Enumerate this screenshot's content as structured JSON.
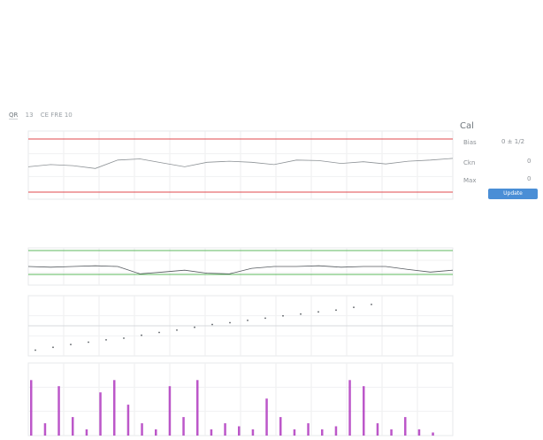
{
  "tabs": [
    {
      "label": "QR"
    },
    {
      "label": "13"
    },
    {
      "label": "CE FRE 10"
    }
  ],
  "side_panel": {
    "title": "Cal",
    "rows": [
      {
        "label": "Bias",
        "value": "0 ± 1/2"
      },
      {
        "label": "Ckn",
        "value": "0"
      },
      {
        "label": "Max",
        "value": "0"
      }
    ],
    "update_button": "Update"
  },
  "chart_data": [
    {
      "type": "line",
      "series": [
        {
          "values": [
            0.58,
            0.62,
            0.6,
            0.55,
            0.7,
            0.72,
            0.65,
            0.58,
            0.66,
            0.68,
            0.66,
            0.62,
            0.7,
            0.69,
            0.64,
            0.67,
            0.63,
            0.68,
            0.7,
            0.73
          ]
        }
      ],
      "bounds_color": "#e0484d"
    },
    {
      "type": "line",
      "series": [
        {
          "values": [
            0.5,
            0.48,
            0.5,
            0.52,
            0.5,
            0.3,
            0.35,
            0.4,
            0.32,
            0.3,
            0.45,
            0.5,
            0.5,
            0.52,
            0.48,
            0.5,
            0.5,
            0.42,
            0.35,
            0.4
          ]
        }
      ],
      "line_color": "#5cb85c"
    },
    {
      "type": "scatter",
      "series": [
        {
          "values": [
            0.1,
            0.15,
            0.2,
            0.24,
            0.28,
            0.31,
            0.36,
            0.41,
            0.45,
            0.5,
            0.55,
            0.58,
            0.62,
            0.66,
            0.7,
            0.73,
            0.77,
            0.8,
            0.85,
            0.9
          ]
        }
      ]
    },
    {
      "type": "bar",
      "values": [
        0.9,
        0.2,
        0.8,
        0.3,
        0.1,
        0.7,
        0.9,
        0.5,
        0.2,
        0.1,
        0.8,
        0.3,
        0.9,
        0.1,
        0.2,
        0.15,
        0.1,
        0.6,
        0.3,
        0.1,
        0.2,
        0.1,
        0.15,
        0.9,
        0.8,
        0.2,
        0.1,
        0.3,
        0.1,
        0.05
      ],
      "bar_color": "#b03ac0"
    }
  ]
}
